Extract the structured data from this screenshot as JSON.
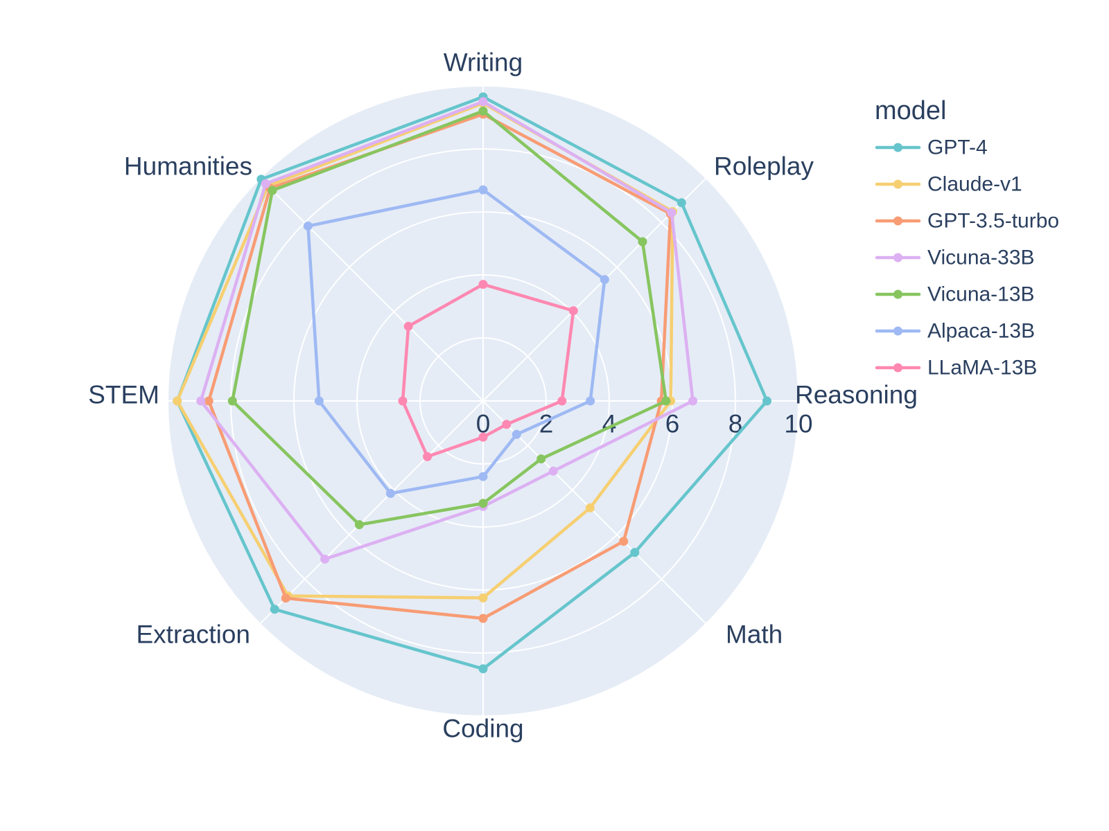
{
  "page": {
    "background": "#FFFFFF"
  },
  "chart_data": {
    "type": "radar",
    "title": "",
    "categories": [
      "Writing",
      "Roleplay",
      "Reasoning",
      "Math",
      "Coding",
      "Extraction",
      "STEM",
      "Humanities"
    ],
    "series": [
      {
        "name": "GPT-4",
        "color": "#66C5CC",
        "values": [
          9.65,
          8.9,
          9.0,
          6.8,
          8.5,
          9.35,
          9.7,
          9.95
        ]
      },
      {
        "name": "Claude-v1",
        "color": "#F6CF71",
        "values": [
          9.45,
          8.5,
          5.95,
          4.8,
          6.25,
          8.75,
          9.7,
          9.65
        ]
      },
      {
        "name": "GPT-3.5-turbo",
        "color": "#F89C74",
        "values": [
          9.1,
          8.4,
          5.65,
          6.3,
          6.9,
          8.85,
          8.7,
          9.55
        ]
      },
      {
        "name": "Vicuna-33B",
        "color": "#DCB0F2",
        "values": [
          9.5,
          8.45,
          6.65,
          3.15,
          3.35,
          7.1,
          8.95,
          9.75
        ]
      },
      {
        "name": "Vicuna-13B",
        "color": "#87C55F",
        "values": [
          9.2,
          7.15,
          5.8,
          2.6,
          3.25,
          5.55,
          7.95,
          9.45
        ]
      },
      {
        "name": "Alpaca-13B",
        "color": "#9EB9F3",
        "values": [
          6.7,
          5.45,
          3.4,
          1.5,
          2.4,
          4.15,
          5.2,
          7.85
        ]
      },
      {
        "name": "LLaMA-13B",
        "color": "#FE88B1",
        "values": [
          3.7,
          4.05,
          2.5,
          1.05,
          1.15,
          2.5,
          2.55,
          3.35
        ]
      }
    ],
    "radial_axis": {
      "min": 0,
      "max": 10,
      "tick_values": [
        0,
        2,
        4,
        6,
        8,
        10
      ],
      "tick_labels": [
        "0",
        "2",
        "4",
        "6",
        "8",
        "10"
      ]
    },
    "angular_axis": {
      "start_angle_deg": 90,
      "direction": "clockwise",
      "step_deg": 45
    },
    "legend": {
      "title": "model",
      "position": "right"
    },
    "style": {
      "plot_bg": "#E5ECF6",
      "grid_color": "#FFFFFF",
      "text_color": "#2A3F5F"
    }
  }
}
